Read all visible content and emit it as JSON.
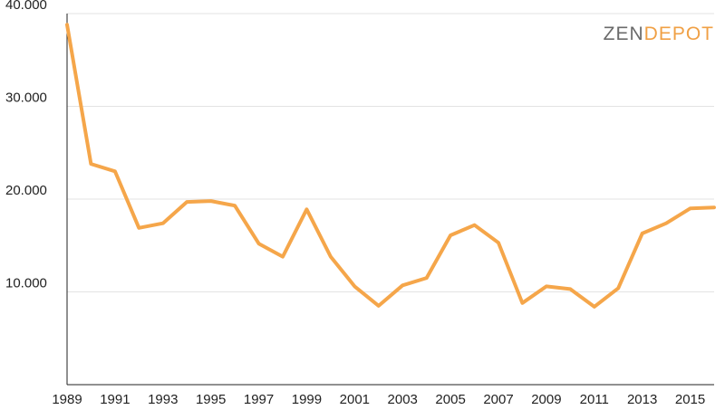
{
  "logo": {
    "part1": "ZEN",
    "part2": "DEPOT",
    "color1": "#6b6b6b",
    "color2": "#f0a045"
  },
  "chart_data": {
    "type": "line",
    "title": "",
    "xlabel": "",
    "ylabel": "",
    "grid": true,
    "line_color": "#f5a64a",
    "ylim": [
      0,
      40000
    ],
    "xlim": [
      1989,
      2016
    ],
    "yticks": [
      {
        "value": 10000,
        "label": "10.000"
      },
      {
        "value": 20000,
        "label": "20.000"
      },
      {
        "value": 30000,
        "label": "30.000"
      },
      {
        "value": 40000,
        "label": "40.000"
      }
    ],
    "xticks": [
      {
        "value": 1989,
        "label": "1989"
      },
      {
        "value": 1991,
        "label": "1991"
      },
      {
        "value": 1993,
        "label": "1993"
      },
      {
        "value": 1995,
        "label": "1995"
      },
      {
        "value": 1997,
        "label": "1997"
      },
      {
        "value": 1999,
        "label": "1999"
      },
      {
        "value": 2001,
        "label": "2001"
      },
      {
        "value": 2003,
        "label": "2003"
      },
      {
        "value": 2005,
        "label": "2005"
      },
      {
        "value": 2007,
        "label": "2007"
      },
      {
        "value": 2009,
        "label": "2009"
      },
      {
        "value": 2011,
        "label": "2011"
      },
      {
        "value": 2013,
        "label": "2013"
      },
      {
        "value": 2015,
        "label": "2015"
      }
    ],
    "series": [
      {
        "x": [
          1989,
          1990,
          1991,
          1992,
          1993,
          1994,
          1995,
          1996,
          1997,
          1998,
          1999,
          2000,
          2001,
          2002,
          2003,
          2004,
          2005,
          2006,
          2007,
          2008,
          2009,
          2010,
          2011,
          2012,
          2013,
          2014,
          2015,
          2016
        ],
        "values": [
          38800,
          23800,
          23000,
          16900,
          17400,
          19700,
          19800,
          19300,
          15200,
          13800,
          18900,
          13800,
          10600,
          8500,
          10700,
          11500,
          16100,
          17200,
          15300,
          8800,
          10600,
          10300,
          8400,
          10400,
          16300,
          17400,
          19000,
          19100
        ]
      }
    ]
  }
}
